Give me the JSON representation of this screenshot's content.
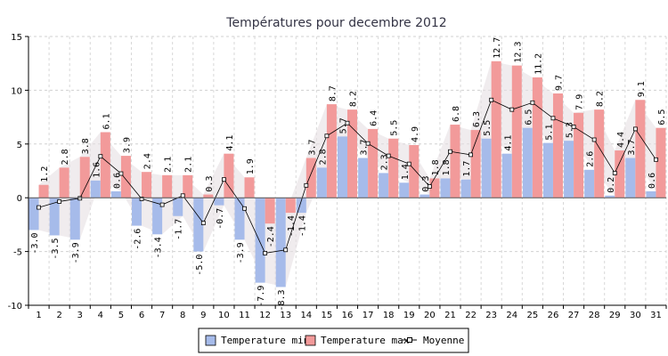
{
  "chart_data": {
    "type": "bar",
    "title": "Températures pour decembre 2012",
    "categories": [
      "1",
      "2",
      "3",
      "4",
      "5",
      "6",
      "7",
      "8",
      "9",
      "10",
      "11",
      "12",
      "13",
      "14",
      "15",
      "16",
      "17",
      "18",
      "19",
      "20",
      "21",
      "22",
      "23",
      "24",
      "25",
      "26",
      "27",
      "28",
      "29",
      "30",
      "31"
    ],
    "series": [
      {
        "name": "Temperature min",
        "color": "#a6bbea",
        "values": [
          -3.0,
          -3.5,
          -3.9,
          1.6,
          0.6,
          -2.6,
          -3.4,
          -1.7,
          -5.0,
          -0.7,
          -3.9,
          -7.9,
          -8.3,
          -1.4,
          2.8,
          5.7,
          3.7,
          2.3,
          1.4,
          0.3,
          1.8,
          1.7,
          5.5,
          4.1,
          6.5,
          5.1,
          5.3,
          2.6,
          0.2,
          3.7,
          0.6
        ]
      },
      {
        "name": "Temperature max",
        "color": "#f29a9a",
        "values": [
          1.2,
          2.8,
          3.8,
          6.1,
          3.9,
          2.4,
          2.1,
          2.1,
          0.3,
          4.1,
          1.9,
          -2.4,
          -1.4,
          3.7,
          8.7,
          8.2,
          6.4,
          5.5,
          4.9,
          1.8,
          6.8,
          6.3,
          12.7,
          12.3,
          11.2,
          9.7,
          7.9,
          8.2,
          4.4,
          9.1,
          6.5
        ]
      },
      {
        "name": "Moyenne",
        "color": "#000000"
      }
    ],
    "ylim": [
      -10,
      15
    ],
    "yticks": [
      "-10",
      "-5",
      "0",
      "5",
      "10",
      "15"
    ],
    "grid": true,
    "legend_position": "bottom"
  }
}
